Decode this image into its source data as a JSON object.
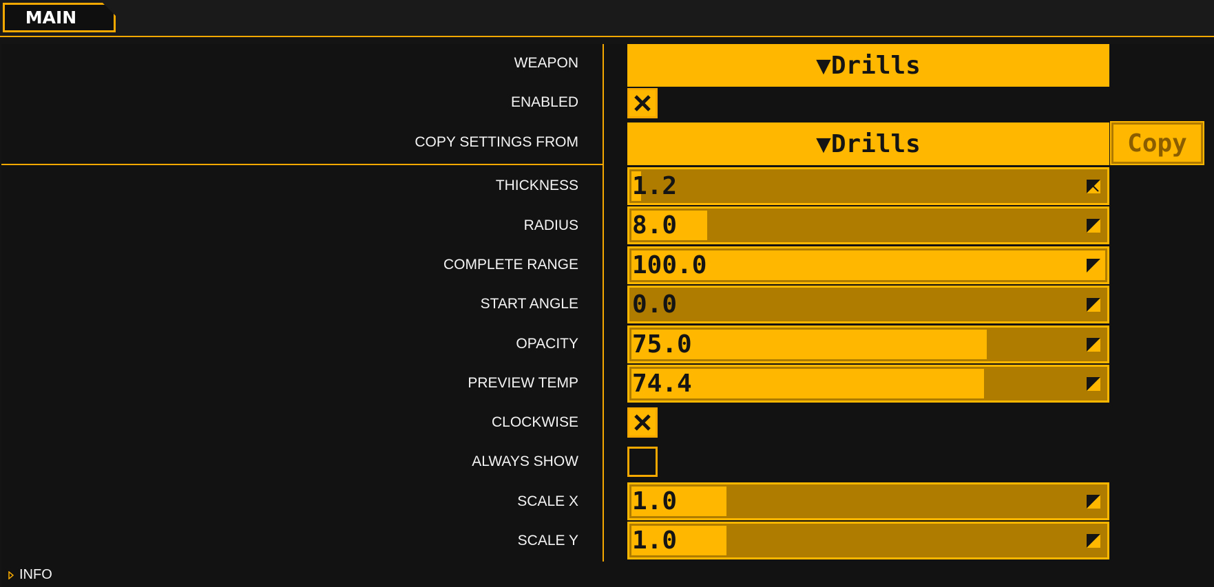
{
  "tabs": [
    {
      "label": "MAIN"
    }
  ],
  "weapon": {
    "label": "WEAPON",
    "value": "▼Drills"
  },
  "enabled": {
    "label": "ENABLED",
    "checked": true
  },
  "copy_settings": {
    "label": "COPY SETTINGS FROM",
    "value": "▼Drills",
    "button": "Copy"
  },
  "sliders": {
    "thickness": {
      "label": "THICKNESS",
      "value": "1.2",
      "fill": 0.02
    },
    "radius": {
      "label": "RADIUS",
      "value": "8.0",
      "fill": 0.16
    },
    "complete_range": {
      "label": "COMPLETE RANGE",
      "value": "100.0",
      "fill": 1.0
    },
    "start_angle": {
      "label": "START ANGLE",
      "value": "0.0",
      "fill": 0.0
    },
    "opacity": {
      "label": "OPACITY",
      "value": "75.0",
      "fill": 0.75
    },
    "preview_temp": {
      "label": "PREVIEW TEMP",
      "value": "74.4",
      "fill": 0.744
    },
    "scale_x": {
      "label": "SCALE X",
      "value": "1.0",
      "fill": 0.2
    },
    "scale_y": {
      "label": "SCALE Y",
      "value": "1.0",
      "fill": 0.2
    }
  },
  "clockwise": {
    "label": "CLOCKWISE",
    "checked": true
  },
  "always_show": {
    "label": "ALWAYS SHOW",
    "checked": false
  },
  "info": {
    "label": "INFO"
  },
  "colors": {
    "accent": "#ffb700",
    "accent_dark": "#b07c00",
    "background": "#121212"
  }
}
